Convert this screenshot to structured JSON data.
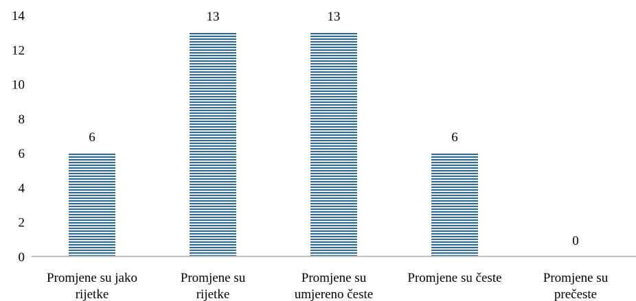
{
  "chart_data": {
    "type": "bar",
    "categories": [
      [
        "Promjene su jako",
        "rijetke"
      ],
      [
        "Promjene su",
        "rijetke"
      ],
      [
        "Promjene su",
        "umjereno česte"
      ],
      [
        "Promjene su česte"
      ],
      [
        "Promjene su",
        "prečeste"
      ]
    ],
    "values": [
      6,
      13,
      13,
      6,
      0
    ],
    "ylim": [
      0,
      14
    ],
    "yticks": [
      "0",
      "2",
      "4",
      "6",
      "8",
      "10",
      "12",
      "14"
    ],
    "grid": false,
    "legend": "none",
    "bar_color": "#2f6b8e",
    "bar_stripe_color": "#ffffff"
  }
}
